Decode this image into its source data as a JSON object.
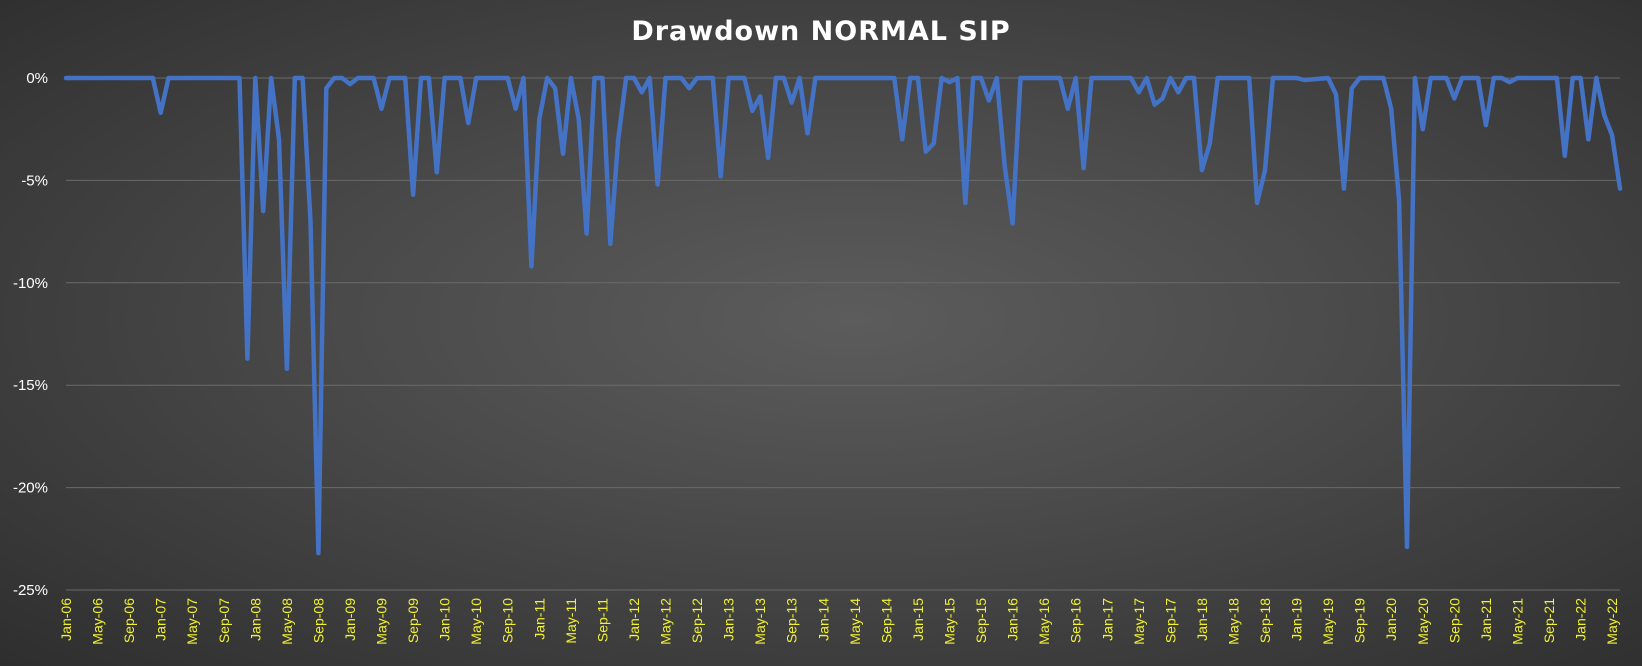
{
  "chart_data": {
    "type": "line",
    "title": "Drawdown NORMAL SIP",
    "xlabel": "",
    "ylabel": "",
    "ylim": [
      -0.25,
      0
    ],
    "yticks": [
      0,
      -0.05,
      -0.1,
      -0.15,
      -0.2,
      -0.25
    ],
    "ytick_labels": [
      "0%",
      "-5%",
      "-10%",
      "-15%",
      "-20%",
      "-25%"
    ],
    "x_range": [
      "Jan-06",
      "Jun-22"
    ],
    "xtick_labels": [
      "Jan-06",
      "May-06",
      "Sep-06",
      "Jan-07",
      "May-07",
      "Sep-07",
      "Jan-08",
      "May-08",
      "Sep-08",
      "Jan-09",
      "May-09",
      "Sep-09",
      "Jan-10",
      "May-10",
      "Sep-10",
      "Jan-11",
      "May-11",
      "Sep-11",
      "Jan-12",
      "May-12",
      "Sep-12",
      "Jan-13",
      "May-13",
      "Sep-13",
      "Jan-14",
      "May-14",
      "Sep-14",
      "Jan-15",
      "May-15",
      "Sep-15",
      "Jan-16",
      "May-16",
      "Sep-16",
      "Jan-17",
      "May-17",
      "Sep-17",
      "Jan-18",
      "May-18",
      "Sep-18",
      "Jan-19",
      "May-19",
      "Sep-19",
      "Jan-20",
      "May-20",
      "Sep-20",
      "Jan-21",
      "May-21",
      "Sep-21",
      "Jan-22",
      "May-22"
    ],
    "grid": true,
    "legend": "none",
    "line_color": "#4472c4",
    "series": [
      {
        "points": [
          [
            "Jan-06",
            0
          ],
          [
            "Sep-06",
            0
          ],
          [
            "Dec-06",
            0
          ],
          [
            "Jan-07",
            -0.017
          ],
          [
            "Feb-07",
            0
          ],
          [
            "Nov-07",
            0
          ],
          [
            "Dec-07",
            -0.137
          ],
          [
            "Jan-08",
            0
          ],
          [
            "Feb-08",
            -0.065
          ],
          [
            "Mar-08",
            0
          ],
          [
            "Apr-08",
            -0.03
          ],
          [
            "May-08",
            -0.142
          ],
          [
            "Jun-08",
            0
          ],
          [
            "Jul-08",
            0
          ],
          [
            "Aug-08",
            -0.07
          ],
          [
            "Sep-08",
            -0.232
          ],
          [
            "Oct-08",
            -0.005
          ],
          [
            "Nov-08",
            0
          ],
          [
            "Dec-08",
            0
          ],
          [
            "Jan-09",
            -0.003
          ],
          [
            "Feb-09",
            0
          ],
          [
            "Apr-09",
            0
          ],
          [
            "May-09",
            -0.015
          ],
          [
            "Jun-09",
            0
          ],
          [
            "Aug-09",
            0
          ],
          [
            "Sep-09",
            -0.057
          ],
          [
            "Oct-09",
            0
          ],
          [
            "Nov-09",
            0
          ],
          [
            "Dec-09",
            -0.046
          ],
          [
            "Jan-10",
            0
          ],
          [
            "Mar-10",
            0
          ],
          [
            "Apr-10",
            -0.022
          ],
          [
            "May-10",
            0
          ],
          [
            "Sep-10",
            0
          ],
          [
            "Oct-10",
            -0.015
          ],
          [
            "Nov-10",
            0
          ],
          [
            "Dec-10",
            -0.092
          ],
          [
            "Jan-11",
            -0.02
          ],
          [
            "Feb-11",
            0
          ],
          [
            "Mar-11",
            -0.005
          ],
          [
            "Apr-11",
            -0.037
          ],
          [
            "May-11",
            0
          ],
          [
            "Jun-11",
            -0.02
          ],
          [
            "Jul-11",
            -0.076
          ],
          [
            "Aug-11",
            0
          ],
          [
            "Sep-11",
            0
          ],
          [
            "Oct-11",
            -0.081
          ],
          [
            "Nov-11",
            -0.03
          ],
          [
            "Dec-11",
            0
          ],
          [
            "Jan-12",
            0
          ],
          [
            "Feb-12",
            -0.007
          ],
          [
            "Mar-12",
            0
          ],
          [
            "Apr-12",
            -0.052
          ],
          [
            "May-12",
            0
          ],
          [
            "Jul-12",
            0
          ],
          [
            "Aug-12",
            -0.005
          ],
          [
            "Sep-12",
            0
          ],
          [
            "Nov-12",
            0
          ],
          [
            "Dec-12",
            -0.048
          ],
          [
            "Jan-13",
            0
          ],
          [
            "Mar-13",
            0
          ],
          [
            "Apr-13",
            -0.016
          ],
          [
            "May-13",
            -0.009
          ],
          [
            "Jun-13",
            -0.039
          ],
          [
            "Jul-13",
            0
          ],
          [
            "Aug-13",
            0
          ],
          [
            "Sep-13",
            -0.012
          ],
          [
            "Oct-13",
            0
          ],
          [
            "Nov-13",
            -0.027
          ],
          [
            "Dec-13",
            0
          ],
          [
            "Sep-14",
            0
          ],
          [
            "Oct-14",
            0
          ],
          [
            "Nov-14",
            -0.03
          ],
          [
            "Dec-14",
            0
          ],
          [
            "Jan-15",
            0
          ],
          [
            "Feb-15",
            -0.036
          ],
          [
            "Mar-15",
            -0.032
          ],
          [
            "Apr-15",
            0
          ],
          [
            "May-15",
            -0.002
          ],
          [
            "Jun-15",
            0
          ],
          [
            "Jul-15",
            -0.061
          ],
          [
            "Aug-15",
            0
          ],
          [
            "Sep-15",
            0
          ],
          [
            "Oct-15",
            -0.011
          ],
          [
            "Nov-15",
            0
          ],
          [
            "Dec-15",
            -0.043
          ],
          [
            "Jan-16",
            -0.071
          ],
          [
            "Feb-16",
            0
          ],
          [
            "Jul-16",
            0
          ],
          [
            "Aug-16",
            -0.015
          ],
          [
            "Sep-16",
            0
          ],
          [
            "Oct-16",
            -0.044
          ],
          [
            "Nov-16",
            0
          ],
          [
            "Apr-17",
            0
          ],
          [
            "May-17",
            -0.007
          ],
          [
            "Jun-17",
            0
          ],
          [
            "Jul-17",
            -0.013
          ],
          [
            "Aug-17",
            -0.01
          ],
          [
            "Sep-17",
            0
          ],
          [
            "Oct-17",
            -0.007
          ],
          [
            "Nov-17",
            0
          ],
          [
            "Dec-17",
            0
          ],
          [
            "Jan-18",
            -0.045
          ],
          [
            "Feb-18",
            -0.032
          ],
          [
            "Mar-18",
            0
          ],
          [
            "Jul-18",
            0
          ],
          [
            "Aug-18",
            -0.061
          ],
          [
            "Sep-18",
            -0.045
          ],
          [
            "Oct-18",
            0
          ],
          [
            "Jan-19",
            0
          ],
          [
            "Feb-19",
            -0.001
          ],
          [
            "May-19",
            0
          ],
          [
            "Jun-19",
            -0.008
          ],
          [
            "Jul-19",
            -0.054
          ],
          [
            "Aug-19",
            -0.005
          ],
          [
            "Sep-19",
            0
          ],
          [
            "Dec-19",
            0
          ],
          [
            "Jan-20",
            -0.015
          ],
          [
            "Feb-20",
            -0.06
          ],
          [
            "Mar-20",
            -0.229
          ],
          [
            "Apr-20",
            0
          ],
          [
            "May-20",
            -0.025
          ],
          [
            "Jun-20",
            0
          ],
          [
            "Aug-20",
            0
          ],
          [
            "Sep-20",
            -0.01
          ],
          [
            "Oct-20",
            0
          ],
          [
            "Dec-20",
            0
          ],
          [
            "Jan-21",
            -0.023
          ],
          [
            "Feb-21",
            0
          ],
          [
            "Mar-21",
            0
          ],
          [
            "Apr-21",
            -0.002
          ],
          [
            "May-21",
            0
          ],
          [
            "Oct-21",
            0
          ],
          [
            "Nov-21",
            -0.038
          ],
          [
            "Dec-21",
            0
          ],
          [
            "Jan-22",
            0
          ],
          [
            "Feb-22",
            -0.03
          ],
          [
            "Mar-22",
            0
          ],
          [
            "Apr-22",
            -0.018
          ],
          [
            "May-22",
            -0.028
          ],
          [
            "Jun-22",
            -0.054
          ]
        ]
      }
    ]
  }
}
